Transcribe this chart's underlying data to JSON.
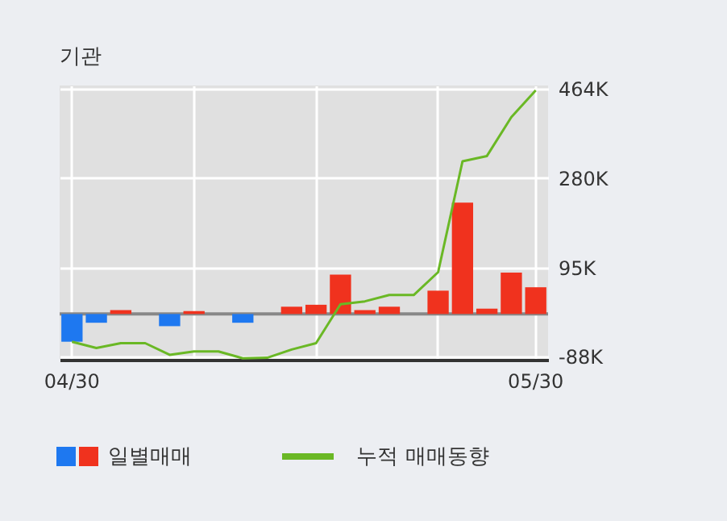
{
  "chart_data": {
    "type": "bar",
    "title": "기관",
    "categories": [
      "04/30",
      null,
      null,
      null,
      null,
      null,
      null,
      null,
      null,
      null,
      null,
      null,
      null,
      null,
      null,
      null,
      null,
      null,
      null,
      "05/30"
    ],
    "series": [
      {
        "name": "일별매매",
        "values": [
          -57000,
          -18000,
          8000,
          0,
          -25000,
          6000,
          0,
          -18000,
          0,
          15000,
          19000,
          81000,
          8000,
          15000,
          0,
          48000,
          229000,
          11000,
          85000,
          55000
        ],
        "colors": [
          "#1e78f0",
          "#1e78f0",
          "#f0321e",
          "#f0321e",
          "#1e78f0",
          "#f0321e",
          "#f0321e",
          "#1e78f0",
          "#f0321e",
          "#f0321e",
          "#f0321e",
          "#f0321e",
          "#f0321e",
          "#f0321e",
          "#f0321e",
          "#f0321e",
          "#f0321e",
          "#f0321e",
          "#f0321e",
          "#f0321e"
        ]
      },
      {
        "name": "누적 매매동향",
        "type": "line",
        "color": "#6ab825",
        "values": [
          -57000,
          -70000,
          -60000,
          -60000,
          -84000,
          -77000,
          -77000,
          -91000,
          -90000,
          -73000,
          -60000,
          20000,
          26000,
          39000,
          39000,
          86000,
          314000,
          325000,
          405000,
          460000
        ]
      }
    ],
    "ylim": [
      -94000,
      470000
    ],
    "yticks": [
      {
        "value": -88000,
        "label": "-88K"
      },
      {
        "value": 95000,
        "label": "95K"
      },
      {
        "value": 280000,
        "label": "280K"
      },
      {
        "value": 464000,
        "label": "464K"
      }
    ],
    "ref_lines": [
      {
        "axis": "y",
        "value": 0,
        "color": "#888888"
      }
    ],
    "grid": true,
    "legend": "bottom"
  }
}
